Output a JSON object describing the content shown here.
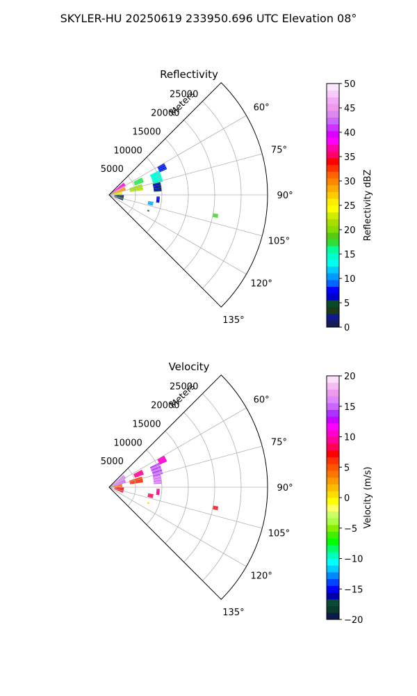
{
  "suptitle": "SKYLER-HU  20250619  233950.696 UTC Elevation 08°",
  "chart_data": [
    {
      "type": "heatmap",
      "projection": "polar-sector",
      "title": "Reflectivity",
      "radial_label": "Meters",
      "radial_ticks": [
        5000,
        10000,
        15000,
        20000,
        25000
      ],
      "theta_ticks": [
        "60°",
        "75°",
        "90°",
        "105°",
        "120°",
        "135°"
      ],
      "theta_range_deg": [
        45,
        135
      ],
      "r_max": 30000,
      "grid": true,
      "colorbar": {
        "label": "Reflectivity dBZ",
        "vmin": 0,
        "vmax": 50,
        "ticks": [
          "0",
          "5",
          "10",
          "15",
          "20",
          "25",
          "30",
          "35",
          "40",
          "45",
          "50"
        ]
      },
      "echoes": [
        {
          "theta_start": 50,
          "theta_end": 62,
          "r_start": 300,
          "r_end": 3600,
          "value": 38
        },
        {
          "theta_start": 63,
          "theta_end": 74,
          "r_start": 300,
          "r_end": 3300,
          "value": 30
        },
        {
          "theta_start": 75,
          "theta_end": 88,
          "r_start": 300,
          "r_end": 2500,
          "value": 23
        },
        {
          "theta_start": 72,
          "theta_end": 82,
          "r_start": 4000,
          "r_end": 6500,
          "value": 22
        },
        {
          "theta_start": 62,
          "theta_end": 70,
          "r_start": 5200,
          "r_end": 7000,
          "value": 17
        },
        {
          "theta_start": 64,
          "theta_end": 76,
          "r_start": 8600,
          "r_end": 10500,
          "value": 14
        },
        {
          "theta_start": 60,
          "theta_end": 66,
          "r_start": 10500,
          "r_end": 12000,
          "value": 8
        },
        {
          "theta_start": 76,
          "theta_end": 86,
          "r_start": 8500,
          "r_end": 10000,
          "value": 6
        },
        {
          "theta_start": 90,
          "theta_end": 112,
          "r_start": 1000,
          "r_end": 2800,
          "value": 3
        },
        {
          "theta_start": 92,
          "theta_end": 99,
          "r_start": 9000,
          "r_end": 9600,
          "value": 7
        },
        {
          "theta_start": 99,
          "theta_end": 104,
          "r_start": 7500,
          "r_end": 8500,
          "value": 11
        },
        {
          "theta_start": 111,
          "theta_end": 113,
          "r_start": 7800,
          "r_end": 8200,
          "value": 4
        },
        {
          "theta_start": 100,
          "theta_end": 102,
          "r_start": 20000,
          "r_end": 21000,
          "value": 18
        }
      ]
    },
    {
      "type": "heatmap",
      "projection": "polar-sector",
      "title": "Velocity",
      "radial_label": "Meters",
      "radial_ticks": [
        5000,
        10000,
        15000,
        20000,
        25000
      ],
      "theta_ticks": [
        "60°",
        "75°",
        "90°",
        "105°",
        "120°",
        "135°"
      ],
      "theta_range_deg": [
        45,
        135
      ],
      "r_max": 30000,
      "grid": true,
      "colorbar": {
        "label": "Velocity (m/s)",
        "vmin": -20,
        "vmax": 20,
        "ticks": [
          "−20",
          "−15",
          "−10",
          "−5",
          "0",
          "5",
          "10",
          "15",
          "20"
        ]
      },
      "echoes": [
        {
          "theta_start": 50,
          "theta_end": 62,
          "r_start": 300,
          "r_end": 3600,
          "value": 16
        },
        {
          "theta_start": 63,
          "theta_end": 74,
          "r_start": 300,
          "r_end": 3300,
          "value": 15
        },
        {
          "theta_start": 75,
          "theta_end": 88,
          "r_start": 300,
          "r_end": 2500,
          "value": 5
        },
        {
          "theta_start": 72,
          "theta_end": 82,
          "r_start": 4000,
          "r_end": 6500,
          "value": 6
        },
        {
          "theta_start": 62,
          "theta_end": 70,
          "r_start": 5200,
          "r_end": 7000,
          "value": 9
        },
        {
          "theta_start": 64,
          "theta_end": 76,
          "r_start": 8600,
          "r_end": 10500,
          "value": 15
        },
        {
          "theta_start": 60,
          "theta_end": 66,
          "r_start": 10500,
          "r_end": 12000,
          "value": 11
        },
        {
          "theta_start": 76,
          "theta_end": 86,
          "r_start": 8500,
          "r_end": 10000,
          "value": 16
        },
        {
          "theta_start": 90,
          "theta_end": 112,
          "r_start": 1000,
          "r_end": 2800,
          "value": 7
        },
        {
          "theta_start": 92,
          "theta_end": 99,
          "r_start": 9000,
          "r_end": 9600,
          "value": 9
        },
        {
          "theta_start": 99,
          "theta_end": 104,
          "r_start": 7500,
          "r_end": 8500,
          "value": 8
        },
        {
          "theta_start": 111,
          "theta_end": 113,
          "r_start": 7800,
          "r_end": 8200,
          "value": 2
        },
        {
          "theta_start": 100,
          "theta_end": 102,
          "r_start": 20000,
          "r_end": 21000,
          "value": 7
        }
      ]
    }
  ]
}
